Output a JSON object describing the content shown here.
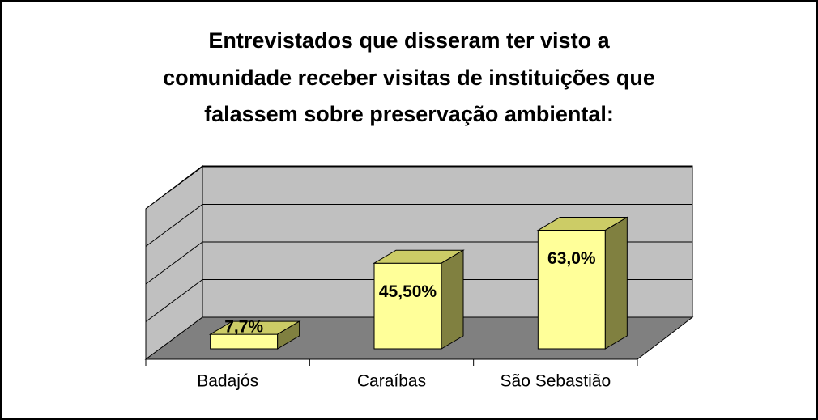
{
  "chart_data": {
    "type": "bar3d",
    "title": [
      "Entrevistados que disseram ter visto a",
      "comunidade receber visitas de instituições que",
      "falassem sobre preservação ambiental:"
    ],
    "categories": [
      "Badajós",
      "Caraíbas",
      "São Sebastião"
    ],
    "values": [
      7.7,
      45.5,
      63.0
    ],
    "value_labels": [
      "7,7%",
      "45,50%",
      "63,0%"
    ],
    "color": "#ffff99",
    "ylim": [
      0,
      80
    ],
    "yticks": [
      0,
      20,
      40,
      60,
      80
    ],
    "grid": true
  }
}
